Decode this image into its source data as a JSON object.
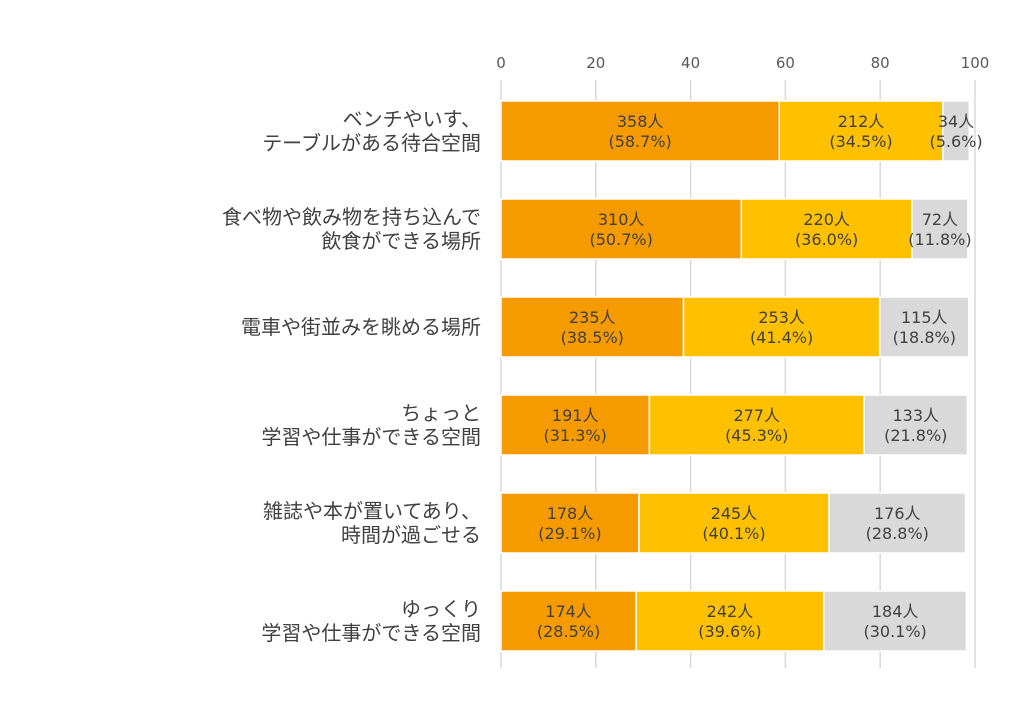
{
  "chart_data": {
    "type": "bar",
    "orientation": "horizontal",
    "stacked": true,
    "xlim": [
      0,
      100
    ],
    "x_ticks": [
      "0",
      "20",
      "40",
      "60",
      "80",
      "100"
    ],
    "grid": true,
    "legend": "none",
    "categories": [
      [
        "ベンチやいす、",
        "テーブルがある待合空間"
      ],
      [
        "食べ物や飲み物を持ち込んで",
        "飲食ができる場所"
      ],
      [
        "電車や街並みを眺める場所"
      ],
      [
        "ちょっと",
        "学習や仕事ができる空間"
      ],
      [
        "雑誌や本が置いてあり、",
        "時間が過ごせる"
      ],
      [
        "ゆっくり",
        "学習や仕事ができる空間"
      ]
    ],
    "series": [
      {
        "color": "#F59B00",
        "values": [
          58.7,
          50.7,
          38.5,
          31.3,
          29.1,
          28.5
        ],
        "labels": [
          [
            "358人",
            "(58.7%)"
          ],
          [
            "310人",
            "(50.7%)"
          ],
          [
            "235人",
            "(38.5%)"
          ],
          [
            "191人",
            "(31.3%)"
          ],
          [
            "178人",
            "(29.1%)"
          ],
          [
            "174人",
            "(28.5%)"
          ]
        ]
      },
      {
        "color": "#FFC000",
        "values": [
          34.5,
          36.0,
          41.4,
          45.3,
          40.1,
          39.6
        ],
        "labels": [
          [
            "212人",
            "(34.5%)"
          ],
          [
            "220人",
            "(36.0%)"
          ],
          [
            "253人",
            "(41.4%)"
          ],
          [
            "277人",
            "(45.3%)"
          ],
          [
            "245人",
            "(40.1%)"
          ],
          [
            "242人",
            "(39.6%)"
          ]
        ]
      },
      {
        "color": "#D9D9D9",
        "values": [
          5.6,
          11.8,
          18.8,
          21.8,
          28.8,
          30.1
        ],
        "labels": [
          [
            "34人",
            "(5.6%)"
          ],
          [
            "72人",
            "(11.8%)"
          ],
          [
            "115人",
            "(18.8%)"
          ],
          [
            "133人",
            "(21.8%)"
          ],
          [
            "176人",
            "(28.8%)"
          ],
          [
            "184人",
            "(30.1%)"
          ]
        ]
      }
    ],
    "gridline_color": "#D9D9D9"
  }
}
